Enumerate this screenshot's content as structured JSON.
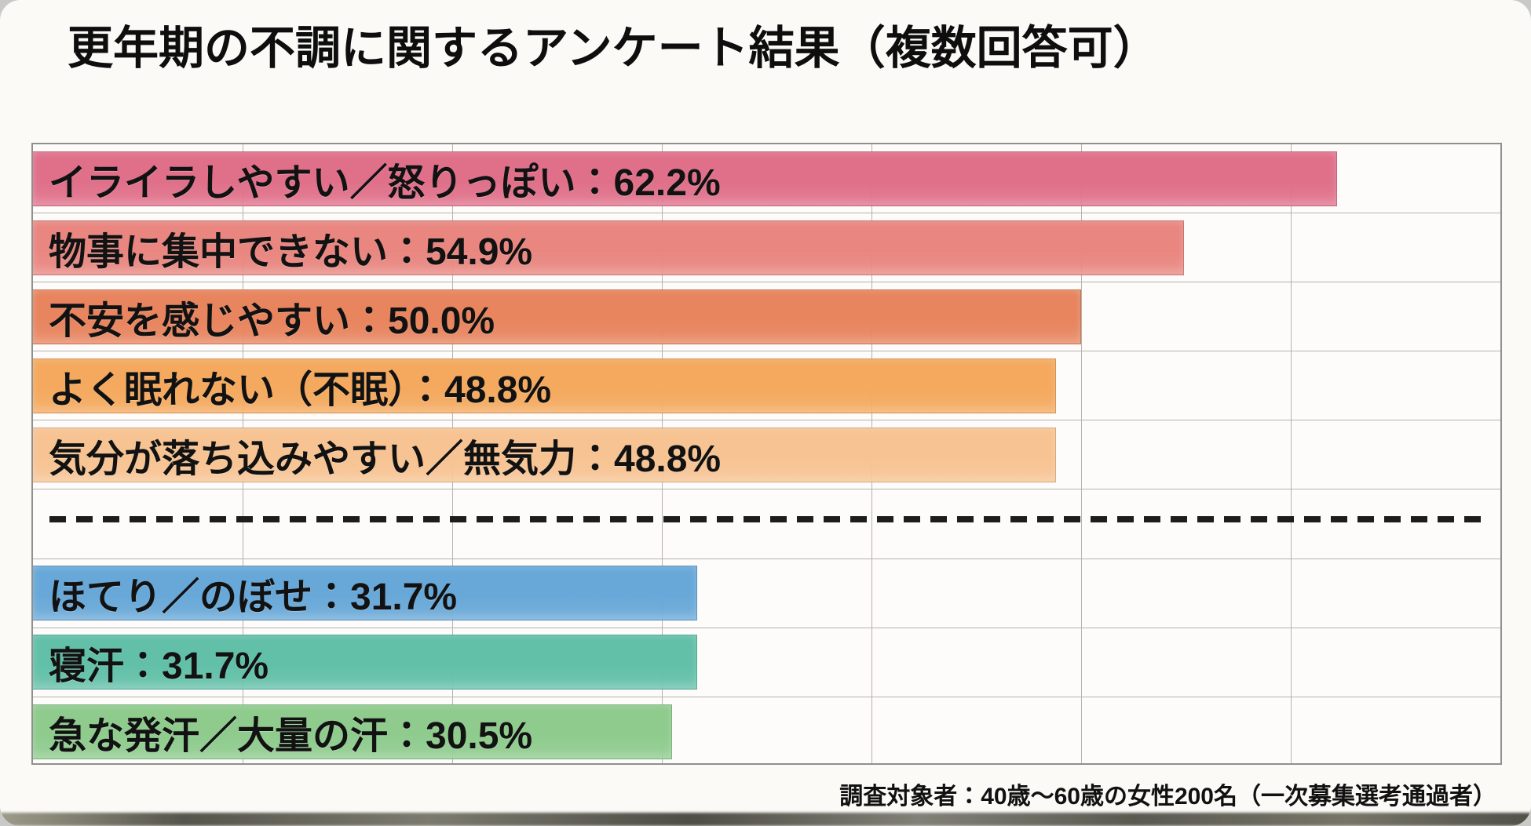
{
  "page": {
    "title": "更年期の不調に関するアンケート結果（複数回答可）",
    "footnote": "調査対象者：40歳〜60歳の女性200名（一次募集選考通過者）"
  },
  "colors": {
    "card_background": "#fbfaf7",
    "plot_background": "#fdfcfa",
    "grid_line": "#b6b2ad",
    "plot_border": "#8f8f8d",
    "text": "#121212",
    "dashed_separator": "#1d1d1d"
  },
  "chart_data": {
    "type": "bar",
    "orientation": "horizontal",
    "title": "更年期の不調に関するアンケート結果（複数回答可）",
    "xlabel": "",
    "ylabel": "",
    "xlim": [
      0,
      70
    ],
    "grid": true,
    "grid_step": 10,
    "legend_position": "none",
    "value_suffix": "%",
    "categories": [
      "イライラしやすい／怒りっぽい",
      "物事に集中できない",
      "不安を感じやすい",
      "よく眠れない（不眠）",
      "気分が落ち込みやすい／無気力",
      "ほてり／のぼせ",
      "寝汗",
      "急な発汗／大量の汗"
    ],
    "values": [
      62.2,
      54.9,
      50.0,
      48.8,
      48.8,
      31.7,
      31.7,
      30.5
    ],
    "separator_after_index": 4,
    "rows": [
      {
        "kind": "bar",
        "label": "イライラしやすい／怒りっぽい",
        "value": 62.2,
        "display": "イライラしやすい／怒りっぽい：62.2%",
        "color": "#e0708a"
      },
      {
        "kind": "bar",
        "label": "物事に集中できない",
        "value": 54.9,
        "display": "物事に集中できない：54.9%",
        "color": "#e98680"
      },
      {
        "kind": "bar",
        "label": "不安を感じやすい",
        "value": 50.0,
        "display": "不安を感じやすい：50.0%",
        "color": "#e8845e"
      },
      {
        "kind": "bar",
        "label": "よく眠れない（不眠）",
        "value": 48.8,
        "display": "よく眠れない（不眠）：48.8%",
        "color": "#f4a95e"
      },
      {
        "kind": "bar",
        "label": "気分が落ち込みやすい／無気力",
        "value": 48.8,
        "display": "気分が落ち込みやすい／無気力：48.8%",
        "color": "#f7c392"
      },
      {
        "kind": "separator"
      },
      {
        "kind": "bar",
        "label": "ほてり／のぼせ",
        "value": 31.7,
        "display": "ほてり／のぼせ：31.7%",
        "color": "#68a8d8"
      },
      {
        "kind": "bar",
        "label": "寝汗",
        "value": 31.7,
        "display": "寝汗：31.7%",
        "color": "#62c0a8"
      },
      {
        "kind": "bar",
        "label": "急な発汗／大量の汗",
        "value": 30.5,
        "display": "急な発汗／大量の汗：30.5%",
        "color": "#8ecb8d"
      }
    ]
  }
}
